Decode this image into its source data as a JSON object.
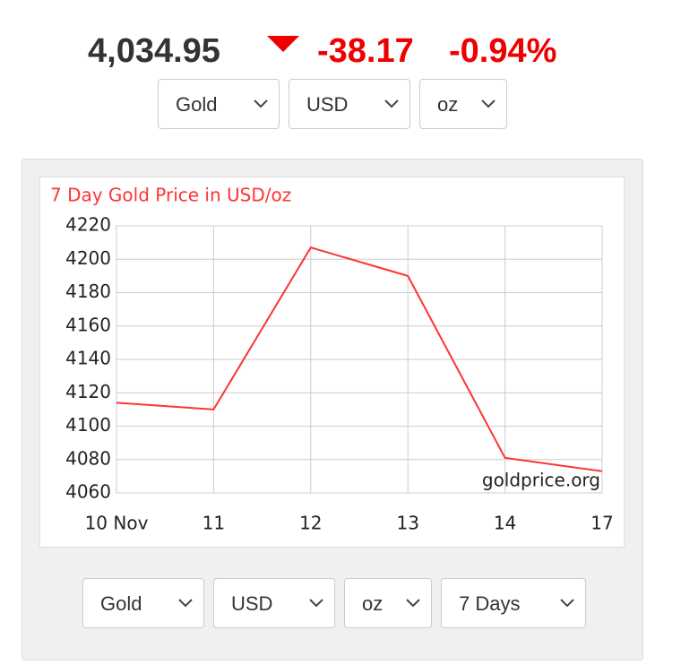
{
  "header": {
    "price": "4,034.95",
    "change": "-38.17",
    "percent": "-0.94%"
  },
  "top_selects": [
    "Gold",
    "USD",
    "oz"
  ],
  "chart_data": {
    "type": "line",
    "title": "7 Day Gold Price in USD/oz",
    "categories": [
      "10 Nov",
      "11",
      "12",
      "13",
      "14",
      "17"
    ],
    "series": [
      {
        "name": "Gold",
        "color": "#ff3333",
        "values": [
          4114,
          4110,
          4207,
          4190,
          4081,
          4073
        ]
      }
    ],
    "ylim": [
      4060,
      4220
    ],
    "yticks": [
      4060,
      4080,
      4100,
      4120,
      4140,
      4160,
      4180,
      4200,
      4220
    ],
    "grid": true,
    "annotation": "goldprice.org"
  },
  "bottom_selects": [
    "Gold",
    "USD",
    "oz",
    "7 Days"
  ]
}
